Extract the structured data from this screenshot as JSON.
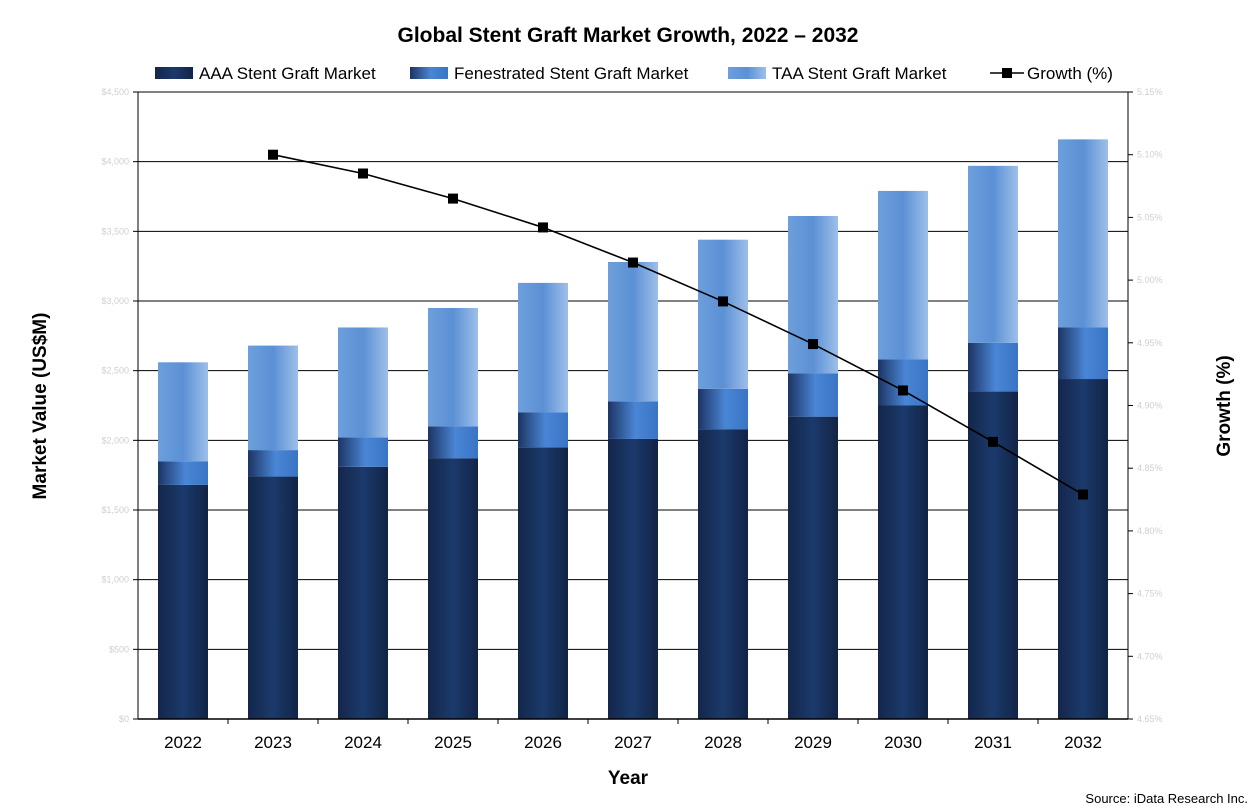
{
  "chart_data": {
    "type": "bar",
    "stacked": true,
    "title": "Global Stent Graft Market Growth, 2022 – 2032",
    "xlabel": "Year",
    "ylabel": "Market Value (US$M)",
    "y2label": "Growth (%)",
    "categories": [
      "2022",
      "2023",
      "2024",
      "2025",
      "2026",
      "2027",
      "2028",
      "2029",
      "2030",
      "2031",
      "2032"
    ],
    "ylim": [
      0,
      4500
    ],
    "y_ticks": [
      0,
      500,
      1000,
      1500,
      2000,
      2500,
      3000,
      3500,
      4000,
      4500
    ],
    "y_tick_labels": [
      "$0",
      "$500",
      "$1,000",
      "$1,500",
      "$2,000",
      "$2,500",
      "$3,000",
      "$3,500",
      "$4,000",
      "$4,500"
    ],
    "y2lim": [
      4.65,
      5.15
    ],
    "y2_ticks": [
      4.65,
      4.7,
      4.75,
      4.8,
      4.85,
      4.9,
      4.95,
      5.0,
      5.05,
      5.1,
      5.15
    ],
    "y2_tick_labels": [
      "4.65%",
      "4.70%",
      "4.75%",
      "4.80%",
      "4.85%",
      "4.90%",
      "4.95%",
      "5.00%",
      "5.05%",
      "5.10%",
      "5.15%"
    ],
    "series": [
      {
        "name": "AAA Stent Graft Market",
        "type": "bar",
        "color": "#17305a",
        "values": [
          1680,
          1740,
          1810,
          1870,
          1950,
          2010,
          2080,
          2170,
          2250,
          2350,
          2440
        ]
      },
      {
        "name": "Fenestrated Stent Graft Market",
        "type": "bar",
        "color": "#3f78c8",
        "values": [
          170,
          190,
          210,
          230,
          250,
          270,
          290,
          310,
          330,
          350,
          370
        ]
      },
      {
        "name": "TAA Stent Graft Market",
        "type": "bar",
        "color": "#7aa8e0",
        "values": [
          710,
          750,
          790,
          850,
          930,
          1000,
          1070,
          1130,
          1210,
          1270,
          1350
        ]
      },
      {
        "name": "Growth (%)",
        "type": "line",
        "axis": "secondary",
        "color": "#000000",
        "values": [
          null,
          5.1,
          5.085,
          5.065,
          5.042,
          5.014,
          4.983,
          4.949,
          4.912,
          4.871,
          4.829
        ]
      }
    ],
    "legend_position": "top",
    "grid": "horizontal"
  },
  "source_text": "Source: iData Research Inc."
}
